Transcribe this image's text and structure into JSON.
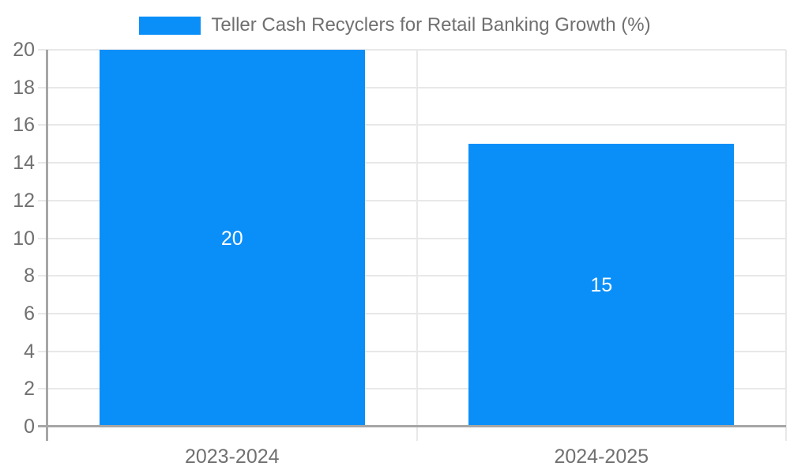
{
  "chart_data": {
    "type": "bar",
    "title": "Teller Cash Recyclers for Retail Banking Growth (%)",
    "categories": [
      "2023-2024",
      "2024-2025"
    ],
    "values": [
      20,
      15
    ],
    "value_labels": [
      "20",
      "15"
    ],
    "ylabel": "",
    "xlabel": "",
    "ylim": [
      0,
      20
    ],
    "ytick_step": 2,
    "yticks": [
      0,
      2,
      4,
      6,
      8,
      10,
      12,
      14,
      16,
      18,
      20
    ],
    "grid": true,
    "legend_position": "top-center",
    "colors": {
      "bar": "#0a8ff9",
      "value_label": "#ffffff",
      "tick_text": "#707070",
      "legend_text": "#707070",
      "gridline": "#e8e8e8",
      "axis_line": "#a6a6a6",
      "background": "#ffffff"
    }
  }
}
